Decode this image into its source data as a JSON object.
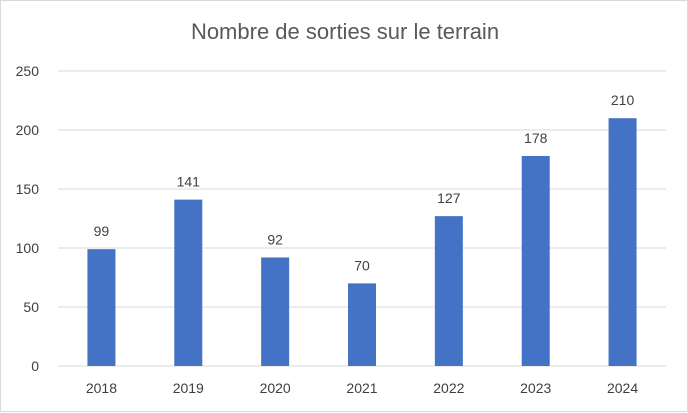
{
  "chart_data": {
    "type": "bar",
    "title": "Nombre de sorties sur le terrain",
    "categories": [
      "2018",
      "2019",
      "2020",
      "2021",
      "2022",
      "2023",
      "2024"
    ],
    "values": [
      99,
      141,
      92,
      70,
      127,
      178,
      210
    ],
    "ylim": [
      0,
      250
    ],
    "yticks": [
      0,
      50,
      100,
      150,
      200,
      250
    ],
    "grid": true,
    "data_labels": true,
    "colors": {
      "bar": "#4472C4",
      "grid": "#D9D9D9",
      "text": "#404040",
      "title": "#595959"
    }
  }
}
